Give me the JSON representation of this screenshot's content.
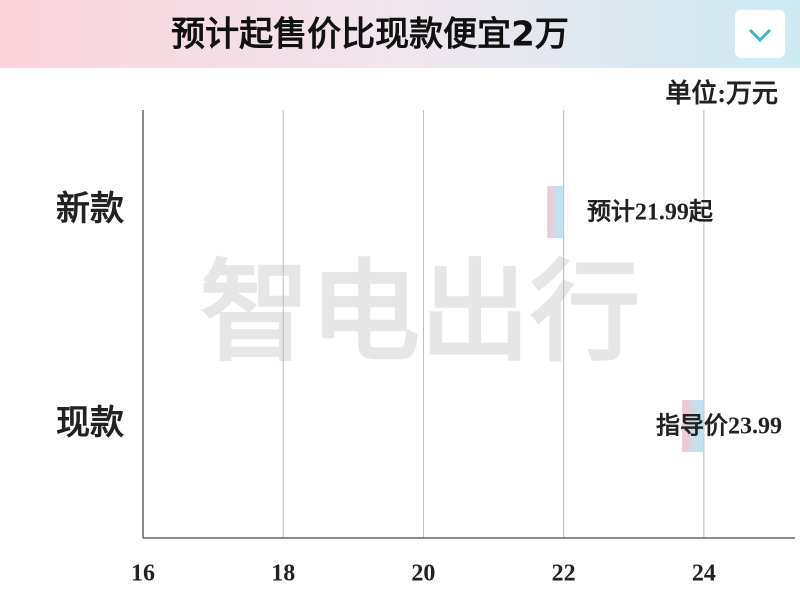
{
  "chart_data": {
    "type": "hbar",
    "title": "预计起售价比现款便宜2万",
    "unit_label": "单位:万元",
    "watermark": "智电出行",
    "categories": [
      "新款",
      "现款"
    ],
    "values": [
      21.99,
      23.99
    ],
    "value_labels": [
      "预计21.99起",
      "指导价23.99"
    ],
    "colors": [
      "#f4c6cf",
      "#bfe3ee"
    ],
    "xlim": [
      16,
      25.3
    ],
    "xticks": [
      16,
      18,
      20,
      22,
      24
    ],
    "grid": true
  }
}
